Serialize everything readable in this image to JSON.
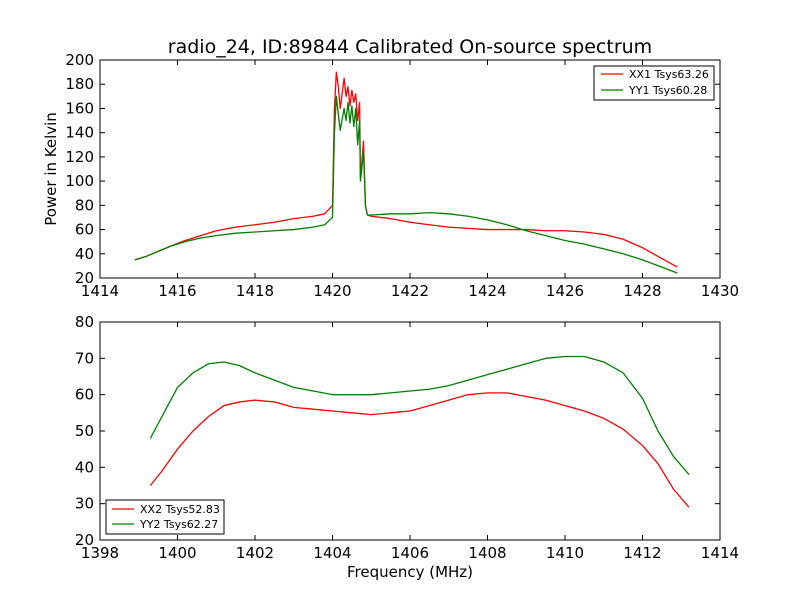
{
  "chart_data": [
    {
      "type": "line",
      "title": "radio_24, ID:89844 Calibrated On-source spectrum",
      "xlabel": "",
      "ylabel": "Power in Kelvin",
      "xlim": [
        1414,
        1430
      ],
      "ylim": [
        20,
        200
      ],
      "xticks": [
        1414,
        1416,
        1418,
        1420,
        1422,
        1424,
        1426,
        1428,
        1430
      ],
      "yticks": [
        20,
        40,
        60,
        80,
        100,
        120,
        140,
        160,
        180,
        200
      ],
      "legend_position": "top-right",
      "grid": false,
      "series": [
        {
          "name": "XX1 Tsys63.26",
          "color": "#ff0000",
          "x": [
            1414.9,
            1415.2,
            1415.5,
            1415.8,
            1416.2,
            1416.6,
            1417.0,
            1417.5,
            1418.0,
            1418.5,
            1419.0,
            1419.5,
            1419.8,
            1420.0,
            1420.05,
            1420.1,
            1420.15,
            1420.2,
            1420.3,
            1420.35,
            1420.4,
            1420.45,
            1420.5,
            1420.55,
            1420.6,
            1420.65,
            1420.7,
            1420.72,
            1420.75,
            1420.8,
            1420.85,
            1420.9,
            1421.0,
            1421.5,
            1422.0,
            1422.5,
            1423.0,
            1423.5,
            1424.0,
            1424.5,
            1425.0,
            1425.5,
            1426.0,
            1426.5,
            1427.0,
            1427.5,
            1428.0,
            1428.5,
            1428.9
          ],
          "values": [
            35,
            38,
            42,
            46,
            51,
            55,
            59,
            62,
            64,
            66,
            69,
            71,
            73,
            80,
            160,
            190,
            178,
            160,
            185,
            170,
            178,
            162,
            175,
            165,
            172,
            150,
            165,
            105,
            112,
            133,
            80,
            72,
            71,
            69,
            66,
            64,
            62,
            61,
            60,
            60,
            60,
            59,
            59,
            58,
            56,
            52,
            45,
            36,
            29
          ]
        },
        {
          "name": "YY1 Tsys60.28",
          "color": "#008000",
          "x": [
            1414.9,
            1415.2,
            1415.5,
            1415.8,
            1416.2,
            1416.6,
            1417.0,
            1417.5,
            1418.0,
            1418.5,
            1419.0,
            1419.5,
            1419.8,
            1420.0,
            1420.05,
            1420.1,
            1420.15,
            1420.2,
            1420.3,
            1420.35,
            1420.4,
            1420.45,
            1420.5,
            1420.55,
            1420.6,
            1420.65,
            1420.7,
            1420.72,
            1420.75,
            1420.8,
            1420.85,
            1420.9,
            1421.0,
            1421.5,
            1422.0,
            1422.5,
            1423.0,
            1423.5,
            1424.0,
            1424.5,
            1425.0,
            1425.5,
            1426.0,
            1426.5,
            1427.0,
            1427.5,
            1428.0,
            1428.5,
            1428.9
          ],
          "values": [
            35,
            38,
            42,
            46,
            50,
            53,
            55,
            57,
            58,
            59,
            60,
            62,
            64,
            70,
            140,
            170,
            155,
            142,
            160,
            150,
            165,
            148,
            162,
            145,
            160,
            130,
            150,
            100,
            108,
            125,
            80,
            72,
            72,
            73,
            73,
            74,
            73,
            71,
            68,
            64,
            59,
            55,
            51,
            48,
            44,
            40,
            35,
            29,
            24
          ]
        }
      ]
    },
    {
      "type": "line",
      "title": "",
      "xlabel": "Frequency (MHz)",
      "ylabel": "",
      "xlim": [
        1398,
        1414
      ],
      "ylim": [
        20,
        80
      ],
      "xticks": [
        1398,
        1400,
        1402,
        1404,
        1406,
        1408,
        1410,
        1412,
        1414
      ],
      "yticks": [
        20,
        30,
        40,
        50,
        60,
        70,
        80
      ],
      "legend_position": "bottom-left",
      "grid": false,
      "series": [
        {
          "name": "XX2 Tsys52.83",
          "color": "#ff0000",
          "x": [
            1399.3,
            1399.6,
            1400.0,
            1400.4,
            1400.8,
            1401.2,
            1401.6,
            1402.0,
            1402.5,
            1403.0,
            1403.5,
            1404.0,
            1404.5,
            1405.0,
            1405.5,
            1406.0,
            1406.5,
            1407.0,
            1407.5,
            1408.0,
            1408.5,
            1409.0,
            1409.5,
            1410.0,
            1410.5,
            1411.0,
            1411.5,
            1412.0,
            1412.4,
            1412.8,
            1413.2
          ],
          "values": [
            35,
            39,
            45,
            50,
            54,
            57,
            58,
            58.5,
            58,
            56.5,
            56,
            55.5,
            55,
            54.5,
            55,
            55.5,
            57,
            58.5,
            60,
            60.5,
            60.5,
            59.5,
            58.5,
            57,
            55.5,
            53.5,
            50.5,
            46,
            41,
            34,
            29
          ]
        },
        {
          "name": "YY2 Tsys62.27",
          "color": "#008000",
          "x": [
            1399.3,
            1399.6,
            1400.0,
            1400.4,
            1400.8,
            1401.2,
            1401.6,
            1402.0,
            1402.5,
            1403.0,
            1403.5,
            1404.0,
            1404.5,
            1405.0,
            1405.5,
            1406.0,
            1406.5,
            1407.0,
            1407.5,
            1408.0,
            1408.5,
            1409.0,
            1409.5,
            1410.0,
            1410.5,
            1411.0,
            1411.5,
            1412.0,
            1412.4,
            1412.8,
            1413.2
          ],
          "values": [
            48,
            54,
            62,
            66,
            68.5,
            69,
            68,
            66,
            64,
            62,
            61,
            60,
            60,
            60,
            60.5,
            61,
            61.5,
            62.5,
            64,
            65.5,
            67,
            68.5,
            70,
            70.5,
            70.5,
            69,
            66,
            59,
            50,
            43,
            38
          ]
        }
      ]
    }
  ]
}
